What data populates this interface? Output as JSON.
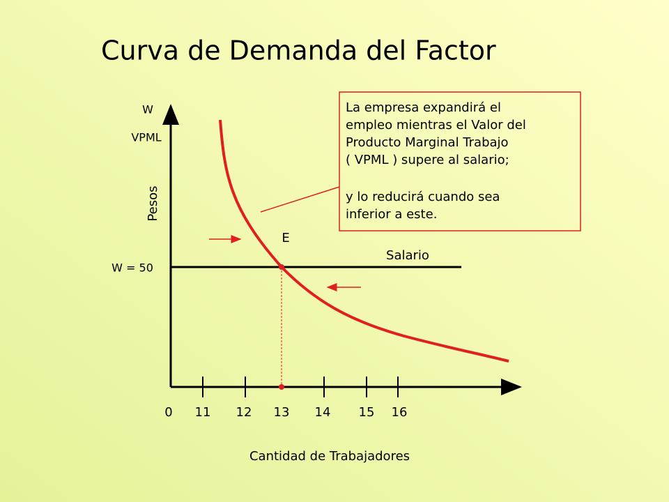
{
  "title": "Curva de Demanda del Factor",
  "y_axis": {
    "label_top": "W",
    "label_second": "VPML",
    "label_side": "Pesos",
    "wage_label": "W = 50"
  },
  "x_axis": {
    "label": "Cantidad de Trabajadores",
    "ticks": [
      "0",
      "11",
      "12",
      "13",
      "14",
      "15",
      "16"
    ]
  },
  "point_label": "E",
  "line_label": "Salario",
  "note": {
    "lines": [
      "La empresa expandirá el",
      "empleo mientras el Valor del",
      "Producto Marginal Trabajo",
      "( VPML ) supere al salario;",
      " y lo reducirá cuando sea",
      "inferior a este."
    ]
  }
}
